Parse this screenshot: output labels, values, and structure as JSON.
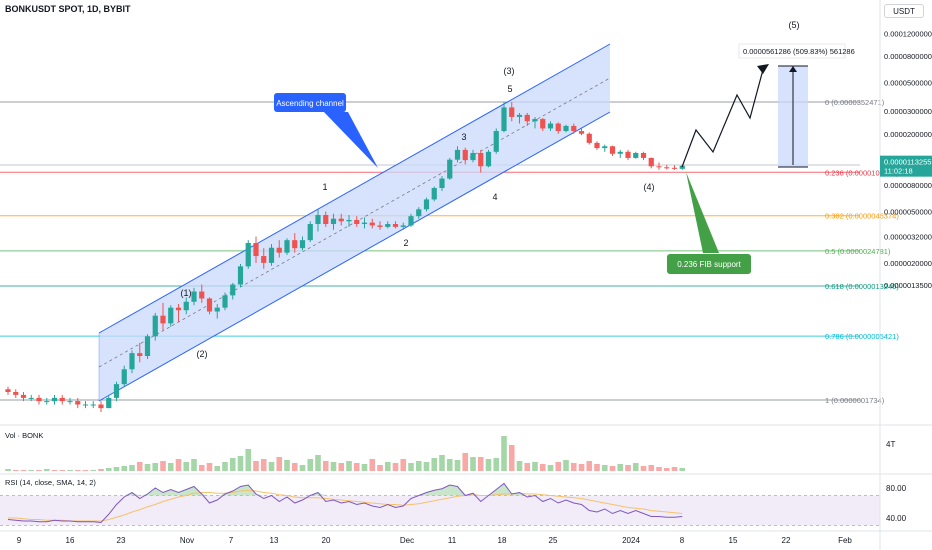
{
  "header": {
    "symbol": "BONKUSDT SPOT, 1D, BYBIT",
    "currency": "USDT"
  },
  "colors": {
    "up": "#26a69a",
    "down": "#ef5350",
    "channel_line": "#2962ff",
    "channel_fill": "#c9d8fb",
    "volume_up": "#a5d6a7",
    "volume_down": "#f7a9a7",
    "rsi_line": "#7e57c2",
    "label_blue": "#2962ff",
    "label_green": "#43a047",
    "price_badge": "#26a69a"
  },
  "chart_data": [
    {
      "type": "candlestick",
      "panel": "price",
      "y_scale": "log",
      "y_ticks": [
        "0.0001200000",
        "0.0000800000",
        "0.0000500000",
        "0.0000300000",
        "0.0000200000",
        "0.0000130000",
        "0.0000080000",
        "0.0000050000",
        "0.0000032000",
        "0.0000020000",
        "0.0000013500"
      ],
      "y_tick_values": [
        0.00012,
        8e-05,
        5e-05,
        3e-05,
        2e-05,
        1.3e-05,
        8e-06,
        5e-06,
        3.2e-06,
        2e-06,
        1.35e-06
      ],
      "x_ticks": [
        "9",
        "16",
        "23",
        "Nov",
        "7",
        "13",
        "20",
        "Dec",
        "11",
        "18",
        "25",
        "2024",
        "8",
        "15",
        "22",
        "Feb"
      ],
      "fib_levels": [
        {
          "label": "0 (0.0000352471)",
          "value": 3.52471e-05,
          "color": "#787b86"
        },
        {
          "label": "0.236 (0.0000100682)",
          "value": 1.00682e-05,
          "color": "#f23645"
        },
        {
          "label": "0.382 (0.0000046374)",
          "value": 4.6374e-06,
          "color": "#ff9800"
        },
        {
          "label": "0.5 (0.0000024781)",
          "value": 2.4781e-06,
          "color": "#4caf50"
        },
        {
          "label": "0.618 (0.0000013240)",
          "value": 1.324e-06,
          "color": "#089981"
        },
        {
          "label": "0.786 (0.0000005421)",
          "value": 5.421e-07,
          "color": "#00bcd4"
        },
        {
          "label": "1 (0.0000001734)",
          "value": 1.734e-07,
          "color": "#787b86"
        }
      ],
      "last_price": "0.0000113255",
      "countdown": "11:02:18",
      "annotations": {
        "ascending_channel": "Ascending channel",
        "fib_support": "0.236 FIB support",
        "target": "0.0000561286 (509.83%) 561286",
        "waves": [
          "(1)",
          "(2)",
          "(3)",
          "(4)",
          "(5)",
          "1",
          "2",
          "3",
          "4",
          "5"
        ]
      },
      "candles": [
        [
          2.1e-07,
          2.2e-07,
          1.9e-07,
          2e-07
        ],
        [
          2e-07,
          2.1e-07,
          1.8e-07,
          1.9e-07
        ],
        [
          1.9e-07,
          2e-07,
          1.7e-07,
          1.8e-07
        ],
        [
          1.8e-07,
          1.9e-07,
          1.7e-07,
          1.8e-07
        ],
        [
          1.8e-07,
          1.9e-07,
          1.6e-07,
          1.7e-07
        ],
        [
          1.7e-07,
          1.8e-07,
          1.6e-07,
          1.7e-07
        ],
        [
          1.7e-07,
          1.9e-07,
          1.6e-07,
          1.8e-07
        ],
        [
          1.8e-07,
          1.9e-07,
          1.6e-07,
          1.7e-07
        ],
        [
          1.7e-07,
          1.8e-07,
          1.6e-07,
          1.7e-07
        ],
        [
          1.7e-07,
          1.8e-07,
          1.5e-07,
          1.6e-07
        ],
        [
          1.6e-07,
          1.7e-07,
          1.5e-07,
          1.6e-07
        ],
        [
          1.6e-07,
          1.7e-07,
          1.5e-07,
          1.6e-07
        ],
        [
          1.6e-07,
          1.7e-07,
          1.4e-07,
          1.5e-07
        ],
        [
          1.5e-07,
          1.9e-07,
          1.5e-07,
          1.8e-07
        ],
        [
          1.8e-07,
          2.4e-07,
          1.7e-07,
          2.3e-07
        ],
        [
          2.3e-07,
          3.2e-07,
          2.2e-07,
          3e-07
        ],
        [
          3e-07,
          4.2e-07,
          2.8e-07,
          4e-07
        ],
        [
          4e-07,
          4.8e-07,
          3.4e-07,
          3.8e-07
        ],
        [
          3.8e-07,
          5.6e-07,
          3.6e-07,
          5.4e-07
        ],
        [
          5.4e-07,
          8.2e-07,
          5e-07,
          7.8e-07
        ],
        [
          7.8e-07,
          9.8e-07,
          6e-07,
          6.8e-07
        ],
        [
          6.8e-07,
          9.4e-07,
          6.4e-07,
          9e-07
        ],
        [
          9e-07,
          9.6e-07,
          7e-07,
          8.6e-07
        ],
        [
          8.6e-07,
          1.08e-06,
          8e-07,
          1e-06
        ],
        [
          1e-06,
          1.28e-06,
          9.4e-07,
          1.2e-06
        ],
        [
          1.2e-06,
          1.36e-06,
          9.8e-07,
          1.06e-06
        ],
        [
          1.06e-06,
          1.08e-06,
          8e-07,
          8.4e-07
        ],
        [
          8.4e-07,
          9.6e-07,
          7.4e-07,
          9e-07
        ],
        [
          9e-07,
          1.18e-06,
          8.6e-07,
          1.12e-06
        ],
        [
          1.12e-06,
          1.4e-06,
          1.04e-06,
          1.36e-06
        ],
        [
          1.36e-06,
          1.96e-06,
          1.3e-06,
          1.88e-06
        ],
        [
          1.88e-06,
          3e-06,
          1.8e-06,
          2.85e-06
        ],
        [
          2.85e-06,
          3.2e-06,
          2e-06,
          2.26e-06
        ],
        [
          2.26e-06,
          2.6e-06,
          1.8e-06,
          2e-06
        ],
        [
          2e-06,
          2.8e-06,
          1.9e-06,
          2.62e-06
        ],
        [
          2.62e-06,
          3e-06,
          2.2e-06,
          2.4e-06
        ],
        [
          2.4e-06,
          3.1e-06,
          2.3e-06,
          3e-06
        ],
        [
          3e-06,
          3.4e-06,
          2.4e-06,
          2.6e-06
        ],
        [
          2.6e-06,
          3.2e-06,
          2.5e-06,
          3e-06
        ],
        [
          3e-06,
          4.2e-06,
          2.9e-06,
          4e-06
        ],
        [
          4e-06,
          5.2e-06,
          3.5e-06,
          4.7e-06
        ],
        [
          4.7e-06,
          5e-06,
          3.8e-06,
          4e-06
        ],
        [
          4e-06,
          4.8e-06,
          3.6e-06,
          4.4e-06
        ],
        [
          4.4e-06,
          4.8e-06,
          3.9e-06,
          4.2e-06
        ],
        [
          4.2e-06,
          4.7e-06,
          3.8e-06,
          4.3e-06
        ],
        [
          4.3e-06,
          4.6e-06,
          3.8e-06,
          4e-06
        ],
        [
          4e-06,
          4.5e-06,
          3.7e-06,
          4.1e-06
        ],
        [
          4.1e-06,
          4.4e-06,
          3.7e-06,
          3.9e-06
        ],
        [
          3.9e-06,
          4.2e-06,
          3.6e-06,
          3.8e-06
        ],
        [
          3.8e-06,
          4.2e-06,
          3.7e-06,
          4e-06
        ],
        [
          4e-06,
          4.2e-06,
          3.7e-06,
          3.8e-06
        ],
        [
          3.8e-06,
          4.1e-06,
          3.6e-06,
          3.9e-06
        ],
        [
          3.9e-06,
          4.8e-06,
          3.8e-06,
          4.6e-06
        ],
        [
          4.6e-06,
          5.4e-06,
          4.4e-06,
          5.2e-06
        ],
        [
          5.2e-06,
          6.4e-06,
          5e-06,
          6.2e-06
        ],
        [
          6.2e-06,
          7.8e-06,
          6e-06,
          7.6e-06
        ],
        [
          7.6e-06,
          9.4e-06,
          7.2e-06,
          9e-06
        ],
        [
          9e-06,
          1.3e-05,
          8.8e-06,
          1.26e-05
        ],
        [
          1.26e-05,
          1.6e-05,
          1.2e-05,
          1.5e-05
        ],
        [
          1.5e-05,
          1.56e-05,
          1.16e-05,
          1.25e-05
        ],
        [
          1.25e-05,
          1.5e-05,
          1.2e-05,
          1.42e-05
        ],
        [
          1.42e-05,
          1.5e-05,
          1e-05,
          1.12e-05
        ],
        [
          1.12e-05,
          1.5e-05,
          1.1e-05,
          1.45e-05
        ],
        [
          1.45e-05,
          2.2e-05,
          1.4e-05,
          2.1e-05
        ],
        [
          2.1e-05,
          3.5e-05,
          2.05e-05,
          3.2e-05
        ],
        [
          3.2e-05,
          3.52e-05,
          2.5e-05,
          2.7e-05
        ],
        [
          2.7e-05,
          2.9e-05,
          2.4e-05,
          2.8e-05
        ],
        [
          2.8e-05,
          2.9e-05,
          2.3e-05,
          2.5e-05
        ],
        [
          2.5e-05,
          2.7e-05,
          2.2e-05,
          2.6e-05
        ],
        [
          2.6e-05,
          2.65e-05,
          2.1e-05,
          2.2e-05
        ],
        [
          2.2e-05,
          2.5e-05,
          2.1e-05,
          2.4e-05
        ],
        [
          2.4e-05,
          2.45e-05,
          2e-05,
          2.1e-05
        ],
        [
          2.1e-05,
          2.35e-05,
          2.05e-05,
          2.3e-05
        ],
        [
          2.3e-05,
          2.4e-05,
          2e-05,
          2.1e-05
        ],
        [
          2.1e-05,
          2.2e-05,
          1.95e-05,
          2e-05
        ],
        [
          2e-05,
          2.05e-05,
          1.65e-05,
          1.7e-05
        ],
        [
          1.7e-05,
          1.75e-05,
          1.5e-05,
          1.55e-05
        ],
        [
          1.55e-05,
          1.65e-05,
          1.45e-05,
          1.6e-05
        ],
        [
          1.6e-05,
          1.62e-05,
          1.35e-05,
          1.4e-05
        ],
        [
          1.4e-05,
          1.5e-05,
          1.3e-05,
          1.45e-05
        ],
        [
          1.45e-05,
          1.5e-05,
          1.25e-05,
          1.3e-05
        ],
        [
          1.3e-05,
          1.45e-05,
          1.28e-05,
          1.42e-05
        ],
        [
          1.42e-05,
          1.45e-05,
          1.25e-05,
          1.3e-05
        ],
        [
          1.3e-05,
          1.31e-05,
          1.08e-05,
          1.12e-05
        ],
        [
          1.12e-05,
          1.2e-05,
          1.05e-05,
          1.1e-05
        ],
        [
          1.1e-05,
          1.15e-05,
          1.06e-05,
          1.09e-05
        ],
        [
          1.09e-05,
          1.14e-05,
          1.05e-05,
          1.07e-05
        ],
        [
          1.07e-05,
          1.15e-05,
          1.05e-05,
          1.13e-05
        ]
      ]
    },
    {
      "type": "bar",
      "panel": "volume",
      "label": "Vol · BONK",
      "right_tick": "4T",
      "values": [
        2,
        1,
        1,
        1,
        1,
        2,
        1,
        1,
        1,
        1,
        1,
        1,
        2,
        3,
        4,
        5,
        6,
        9,
        7,
        8,
        10,
        8,
        12,
        9,
        12,
        6,
        8,
        5,
        9,
        13,
        15,
        22,
        10,
        12,
        9,
        14,
        11,
        8,
        6,
        12,
        16,
        10,
        9,
        8,
        10,
        8,
        7,
        12,
        6,
        9,
        8,
        12,
        8,
        10,
        9,
        13,
        16,
        12,
        11,
        18,
        14,
        14,
        12,
        13,
        35,
        26,
        10,
        8,
        9,
        7,
        6,
        9,
        11,
        8,
        7,
        10,
        7,
        6,
        5,
        7,
        6,
        8,
        5,
        6,
        4,
        3,
        4,
        3
      ],
      "up": [
        1,
        0,
        0,
        1,
        0,
        1,
        0,
        0,
        1,
        0,
        0,
        1,
        0,
        1,
        1,
        1,
        1,
        0,
        1,
        1,
        0,
        1,
        0,
        1,
        1,
        0,
        0,
        1,
        1,
        1,
        1,
        1,
        0,
        0,
        1,
        0,
        1,
        0,
        1,
        1,
        1,
        0,
        1,
        0,
        1,
        0,
        1,
        0,
        0,
        1,
        0,
        0,
        1,
        1,
        1,
        1,
        1,
        1,
        1,
        0,
        1,
        0,
        1,
        1,
        1,
        0,
        1,
        0,
        1,
        0,
        1,
        0,
        1,
        0,
        0,
        0,
        0,
        1,
        0,
        1,
        0,
        1,
        0,
        0,
        0,
        0,
        0,
        1
      ]
    },
    {
      "type": "line",
      "panel": "rsi",
      "label": "RSI (14, close, SMA, 14, 2)",
      "y_ticks": [
        "80.00",
        "40.00"
      ],
      "y_tick_values": [
        80,
        40
      ],
      "values": [
        38,
        37,
        36,
        36,
        35,
        35,
        37,
        36,
        36,
        35,
        35,
        35,
        34,
        45,
        58,
        68,
        74,
        66,
        72,
        80,
        74,
        78,
        74,
        78,
        82,
        72,
        60,
        64,
        72,
        76,
        82,
        84,
        72,
        66,
        70,
        62,
        68,
        60,
        64,
        70,
        74,
        62,
        64,
        60,
        62,
        58,
        60,
        56,
        54,
        58,
        54,
        56,
        66,
        70,
        74,
        77,
        79,
        84,
        82,
        70,
        73,
        62,
        70,
        78,
        86,
        72,
        74,
        68,
        70,
        62,
        66,
        60,
        64,
        60,
        58,
        50,
        48,
        52,
        46,
        50,
        46,
        50,
        46,
        42,
        42,
        41,
        41,
        42
      ],
      "signal": [
        40,
        40,
        39,
        38,
        38,
        37,
        37,
        37,
        36,
        36,
        36,
        36,
        36,
        38,
        41,
        44,
        48,
        51,
        55,
        58,
        62,
        65,
        68,
        70,
        73,
        74,
        74,
        73,
        73,
        74,
        76,
        77,
        76,
        74,
        73,
        71,
        70,
        68,
        67,
        67,
        67,
        66,
        65,
        64,
        63,
        62,
        61,
        60,
        59,
        58,
        58,
        57,
        58,
        59,
        61,
        63,
        65,
        67,
        69,
        70,
        71,
        70,
        70,
        71,
        72,
        72,
        73,
        72,
        72,
        71,
        70,
        69,
        68,
        67,
        66,
        64,
        62,
        60,
        58,
        56,
        54,
        53,
        52,
        50,
        49,
        48,
        47,
        46
      ]
    }
  ]
}
